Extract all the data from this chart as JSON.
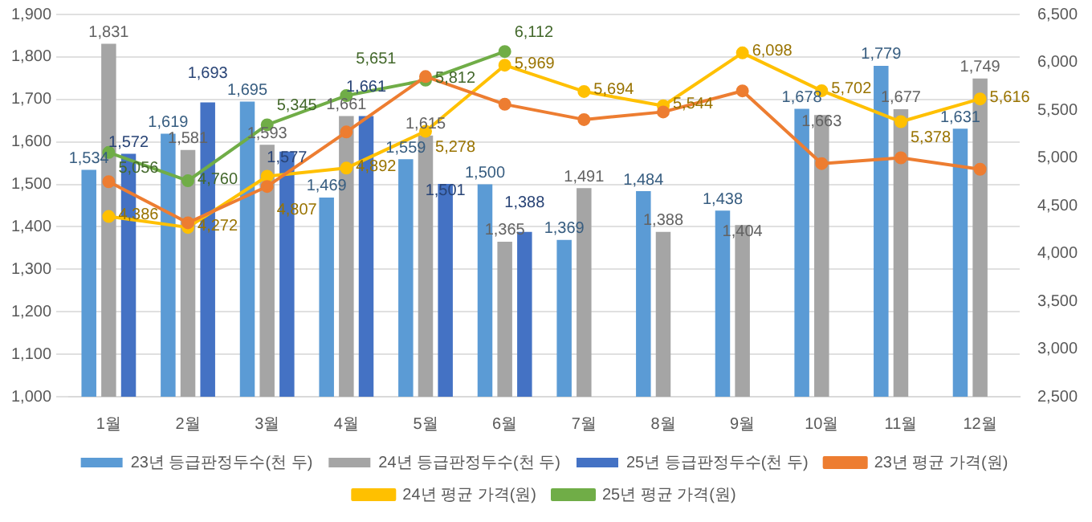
{
  "chart_data": {
    "type": "bar",
    "categories": [
      "1월",
      "2월",
      "3월",
      "4월",
      "5월",
      "6월",
      "7월",
      "8월",
      "9월",
      "10월",
      "11월",
      "12월"
    ],
    "series": [
      {
        "name": "23년 등급판정두수(천 두)",
        "color": "#5b9bd5",
        "values": [
          1534,
          1619,
          1695,
          1469,
          1559,
          1500,
          1369,
          1484,
          1438,
          1678,
          1779,
          1631
        ],
        "value_labels": [
          "1,534",
          "1,619",
          "1,695",
          "1,469",
          "1,559",
          "1,500",
          "1,369",
          "1,484",
          "1,438",
          "1,678",
          "1,779",
          "1,631"
        ]
      },
      {
        "name": "24년 등급판정두수(천 두)",
        "color": "#a5a5a5",
        "values": [
          1831,
          1581,
          1593,
          1661,
          1615,
          1365,
          1491,
          1388,
          1404,
          1663,
          1677,
          1749
        ],
        "value_labels": [
          "1,831",
          "1,581",
          "1,593",
          "1,661",
          "1,615",
          "1,365",
          "1,491",
          "1,388",
          "1,404",
          "1,663",
          "1,677",
          "1,749"
        ]
      },
      {
        "name": "25년 등급판정두수(천 두)",
        "color": "#4472c4",
        "values": [
          1572,
          1693,
          1577,
          1661,
          1501,
          1388,
          null,
          null,
          null,
          null,
          null,
          null
        ],
        "value_labels": [
          "1,572",
          "1,693",
          "1,577",
          "1,661",
          "1,501",
          "1,388",
          null,
          null,
          null,
          null,
          null,
          null
        ]
      },
      {
        "name": "23년 평균 가격(원)",
        "type": "line",
        "axis": "y2",
        "color": "#ed7d31",
        "values": [
          4750,
          4320,
          4700,
          5270,
          5850,
          5560,
          5400,
          5480,
          5700,
          4940,
          5000,
          4880
        ]
      },
      {
        "name": "24년 평균 가격(원)",
        "type": "line",
        "axis": "y2",
        "color": "#ffc000",
        "values": [
          4386,
          4272,
          4807,
          4892,
          5278,
          5969,
          5694,
          5544,
          6098,
          5702,
          5378,
          5616
        ],
        "value_labels": [
          "4,386",
          "4,272",
          "4,807",
          "4,892",
          "5,278",
          "5,969",
          "5,694",
          "5,544",
          "6,098",
          "5,702",
          "5,378",
          "5,616"
        ]
      },
      {
        "name": "25년 평균 가격(원)",
        "type": "line",
        "axis": "y2",
        "color": "#70ad47",
        "values": [
          5056,
          4760,
          5345,
          5651,
          5812,
          6112,
          null,
          null,
          null,
          null,
          null,
          null
        ],
        "value_labels": [
          "5,056",
          "4,760",
          "5,345",
          "5,651",
          "5,812",
          "6,112",
          null,
          null,
          null,
          null,
          null,
          null
        ]
      }
    ],
    "ylim": [
      1000,
      1900
    ],
    "yticks": [
      {
        "value": 1000,
        "label": "1,000"
      },
      {
        "value": 1100,
        "label": "1,100"
      },
      {
        "value": 1200,
        "label": "1,200"
      },
      {
        "value": 1300,
        "label": "1,300"
      },
      {
        "value": 1400,
        "label": "1,400"
      },
      {
        "value": 1500,
        "label": "1,500"
      },
      {
        "value": 1600,
        "label": "1,600"
      },
      {
        "value": 1700,
        "label": "1,700"
      },
      {
        "value": 1800,
        "label": "1,800"
      },
      {
        "value": 1900,
        "label": "1,900"
      }
    ],
    "y2lim": [
      2500,
      6500
    ],
    "y2ticks": [
      {
        "value": 2500,
        "label": "2,500"
      },
      {
        "value": 3000,
        "label": "3,000"
      },
      {
        "value": 3500,
        "label": "3,500"
      },
      {
        "value": 4000,
        "label": "4,000"
      },
      {
        "value": 4500,
        "label": "4,500"
      },
      {
        "value": 5000,
        "label": "5,000"
      },
      {
        "value": 5500,
        "label": "5,500"
      },
      {
        "value": 6000,
        "label": "6,000"
      },
      {
        "value": 6500,
        "label": "6,500"
      }
    ],
    "grid": "y",
    "legend": "bottom",
    "marker": "circle",
    "line_style": "solid"
  }
}
